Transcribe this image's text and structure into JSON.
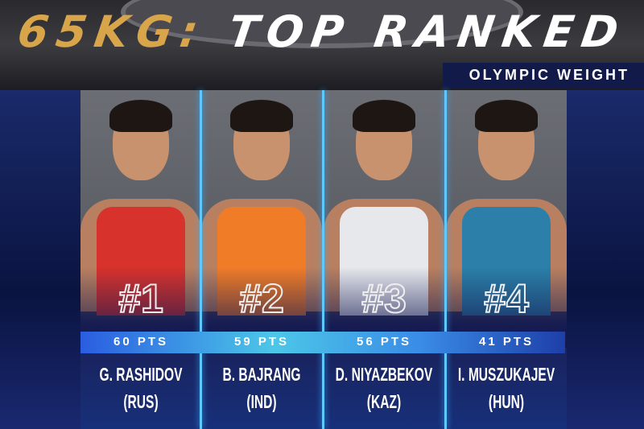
{
  "header": {
    "weight": "65KG:",
    "title": "TOP RANKED",
    "banner": "OLYMPIC WEIGHT"
  },
  "wrestlers": [
    {
      "rank": "#1",
      "points": "60 PTS",
      "name": "G. RASHIDOV",
      "country": "(RUS)",
      "singlet_color": "#d7322c"
    },
    {
      "rank": "#2",
      "points": "59 PTS",
      "name": "B. BAJRANG",
      "country": "(IND)",
      "singlet_color": "#f07c28"
    },
    {
      "rank": "#3",
      "points": "56 PTS",
      "name": "D. NIYAZBEKOV",
      "country": "(KAZ)",
      "singlet_color": "#e6e8ec"
    },
    {
      "rank": "#4",
      "points": "41 PTS",
      "name": "I. MUSZUKAJEV",
      "country": "(HUN)",
      "singlet_color": "#2b7fa8"
    }
  ],
  "colors": {
    "gold": "#d9a54a",
    "accent": "#5fc8ff",
    "background": "#0b1640"
  }
}
